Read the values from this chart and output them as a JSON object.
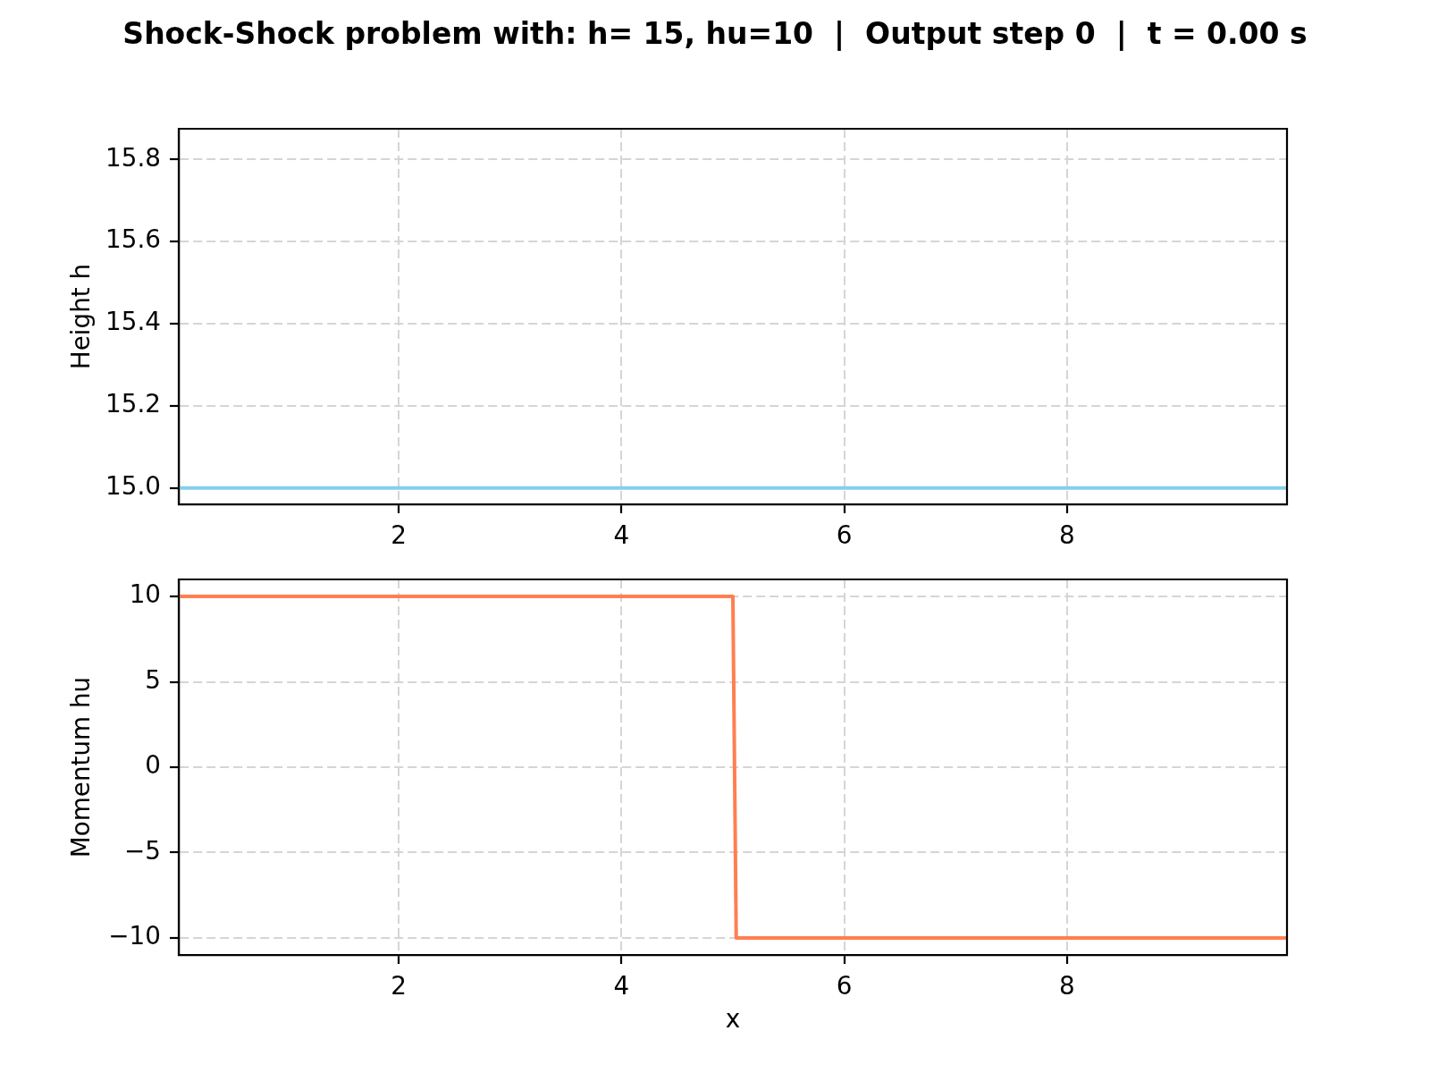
{
  "chart_data": [
    {
      "type": "line",
      "title": "Shock-Shock problem with: h= 15, hu=10  |  Output step 0  |  t = 0.00 s",
      "x": [
        0.025,
        9.975
      ],
      "series": [
        {
          "color": "#87ceeb",
          "values": [
            15,
            15
          ]
        }
      ],
      "xlim": [
        0.025,
        9.975
      ],
      "xticks": [
        2,
        4,
        6,
        8
      ],
      "ylim": [
        14.96,
        15.875
      ],
      "yticks": [
        {
          "value": 15,
          "label": "15.0"
        },
        15.2,
        15.4,
        15.6,
        15.8
      ],
      "ylabel": "Height h",
      "grid": true
    },
    {
      "type": "line",
      "x": [
        0.025,
        5.0,
        5.03,
        9.975
      ],
      "series": [
        {
          "color": "#ff7f50",
          "values": [
            10,
            10,
            -10,
            -10
          ]
        }
      ],
      "xlim": [
        0.025,
        9.975
      ],
      "xticks": [
        2,
        4,
        6,
        8
      ],
      "ylim": [
        -11,
        11
      ],
      "yticks": [
        {
          "value": -10,
          "label": "−10"
        },
        {
          "value": -5,
          "label": "−5"
        },
        0,
        5,
        10
      ],
      "xlabel": "x",
      "ylabel": "Momentum hu",
      "grid": true
    }
  ]
}
